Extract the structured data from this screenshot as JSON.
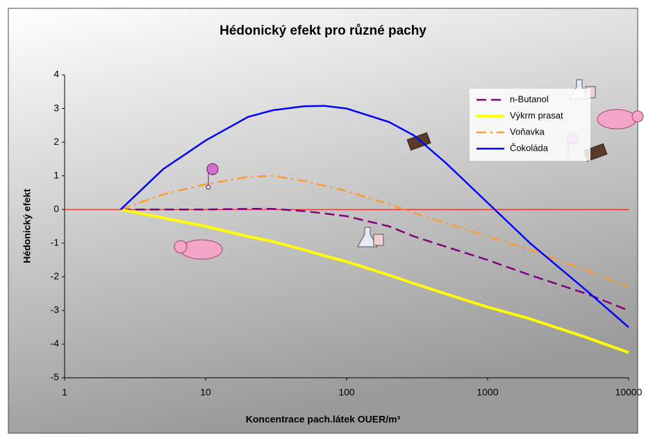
{
  "chart_data": {
    "type": "line",
    "title": "Hédonický efekt pro různé pachy",
    "x_label": "Koncentrace pach.látek  OUER/m³",
    "y_label": "Hédonický efekt",
    "x_scale": "log",
    "x": [
      2.5,
      5,
      10,
      20,
      30,
      50,
      70,
      100,
      200,
      300,
      500,
      1000,
      2000,
      5000,
      10000
    ],
    "series": [
      {
        "name": "n-Butanol",
        "color": "#800080",
        "dash": "dash",
        "values": [
          0,
          0,
          0,
          0.02,
          0.02,
          -0.05,
          -0.12,
          -0.2,
          -0.5,
          -0.8,
          -1.1,
          -1.5,
          -1.95,
          -2.5,
          -3.0
        ]
      },
      {
        "name": "Výkrm prasat",
        "color": "#ffff00",
        "dash": "solid",
        "values": [
          0,
          -0.25,
          -0.5,
          -0.8,
          -0.95,
          -1.2,
          -1.38,
          -1.55,
          -1.95,
          -2.2,
          -2.5,
          -2.9,
          -3.25,
          -3.8,
          -4.25
        ]
      },
      {
        "name": "Voňavka",
        "color": "#ff9933",
        "dash": "dashdot",
        "values": [
          0,
          0.45,
          0.75,
          0.97,
          1.0,
          0.85,
          0.7,
          0.55,
          0.15,
          -0.1,
          -0.4,
          -0.8,
          -1.2,
          -1.8,
          -2.3
        ]
      },
      {
        "name": "Čokoláda",
        "color": "#0000ff",
        "dash": "solid",
        "values": [
          0,
          1.2,
          2.05,
          2.75,
          2.95,
          3.07,
          3.08,
          3.0,
          2.6,
          2.2,
          1.4,
          0.2,
          -1.0,
          -2.4,
          -3.5
        ]
      }
    ],
    "xlim": [
      1,
      10000
    ],
    "xticks": [
      1,
      10,
      100,
      1000,
      10000
    ],
    "ylim": [
      -5,
      4
    ],
    "yticks": [
      -5,
      -4,
      -3,
      -2,
      -1,
      0,
      1,
      2,
      3,
      4
    ],
    "grid": false,
    "legend": "upper right"
  }
}
